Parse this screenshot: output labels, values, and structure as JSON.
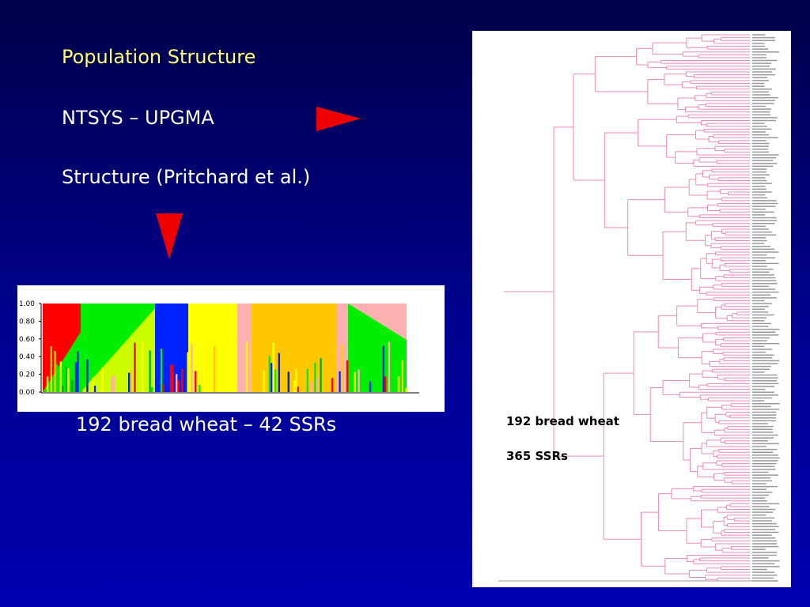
{
  "slide": {
    "title": "Population Structure",
    "items": [
      "NTSYS – UPGMA",
      "Structure (Pritchard et al.)"
    ],
    "structure_plot": {
      "yticks": [
        "1.00",
        "0.80",
        "0.60",
        "0.40",
        "0.20",
        "0.00"
      ],
      "caption": "192 bread wheat – 42 SSRs"
    },
    "dendrogram": {
      "labels": [
        "192 bread wheat",
        "365 SSRs"
      ]
    }
  }
}
